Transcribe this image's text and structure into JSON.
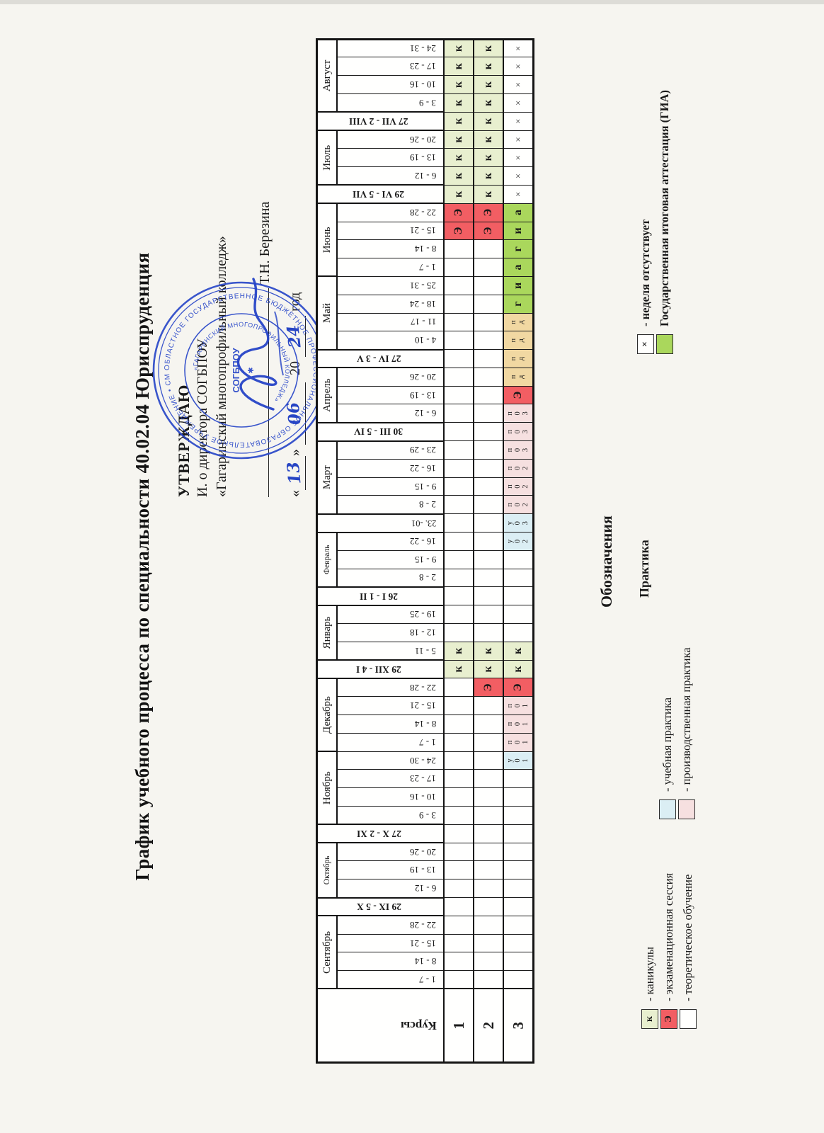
{
  "title": "График учебного процесса по специальности 40.02.04 Юриспруденция",
  "approval": {
    "line1": "УТВЕРЖДАЮ",
    "line2": "И. о директора СОГБПОУ",
    "line3": "«Гагаринский многопрофильный колледж»",
    "sign_name": "Т.Н. Березина",
    "quote_open": "«",
    "quote_close": "»",
    "date_day": "13",
    "date_month": "06",
    "year_prefix": "20",
    "date_year": "24",
    "year_word": "год"
  },
  "stamp": {
    "outer_text": "ОБЛАСТНОЕ ГОСУДАРСТВЕННОЕ БЮДЖЕТНОЕ ПРОФЕССИОНАЛЬНОЕ ОБРАЗОВАТЕЛЬНОЕ УЧРЕЖДЕНИЕ • СМОЛЕНСКОЙ ОБЛАСТИ •",
    "inner_text": "«ГАГАРИНСКИЙ МНОГОПРОФИЛЬНЫЙ КОЛЛЕДЖ»",
    "center_text": "СОГБПОУ"
  },
  "schedule": {
    "courses_header": "Курсы",
    "segments": [
      {
        "month": "Сентябрь",
        "weeks": [
          "1 - 7",
          "8 - 14",
          "15 - 21",
          "22 - 28"
        ]
      },
      {
        "cross": "29 IX - 5 X"
      },
      {
        "month": "Октябрь",
        "small": true,
        "weeks": [
          "6 - 12",
          "13 - 19",
          "20 - 26"
        ]
      },
      {
        "cross": "27 X - 2 XI"
      },
      {
        "month": "Ноябрь",
        "weeks": [
          "3 - 9",
          "10 - 16",
          "17 - 23",
          "24 - 30"
        ]
      },
      {
        "month": "Декабрь",
        "weeks": [
          "1 - 7",
          "8 - 14",
          "15 - 21",
          "22 - 28"
        ]
      },
      {
        "cross": "29 XII - 4 I"
      },
      {
        "month": "Январь",
        "weeks": [
          "5 - 11",
          "12 - 18",
          "19 - 25"
        ]
      },
      {
        "cross": "26 I - 1 II"
      },
      {
        "month": "Февраль",
        "small": true,
        "weeks": [
          "2 - 8",
          "9 - 15",
          "16 - 22"
        ]
      },
      {
        "cross": "23. -01",
        "plain": true
      },
      {
        "month": "Март",
        "weeks": [
          "2 - 8",
          "9 - 15",
          "16 - 22",
          "23 - 29"
        ]
      },
      {
        "cross": "30 III - 5 IV"
      },
      {
        "month": "Апрель",
        "weeks": [
          "6 - 12",
          "13 - 19",
          "20 - 26"
        ]
      },
      {
        "cross": "27 IV - 3 V"
      },
      {
        "month": "Май",
        "weeks": [
          "4 - 10",
          "11 - 17",
          "18 - 24",
          "25 - 31"
        ]
      },
      {
        "month": "Июнь",
        "weeks": [
          "1 - 7",
          "8 - 14",
          "15 - 21",
          "22 - 28"
        ]
      },
      {
        "cross": "29 VI - 5 VII"
      },
      {
        "month": "Июль",
        "weeks": [
          "6 - 12",
          "13 - 19",
          "20 - 26"
        ]
      },
      {
        "cross": "27 VII - 2 VIII"
      },
      {
        "month": "Август",
        "weeks": [
          "3 - 9",
          "10 - 16",
          "17 - 23",
          "24 - 31"
        ]
      }
    ],
    "cell_types": {
      "blank": {
        "text": "",
        "bg": "#fffffe",
        "cls": ""
      },
      "k": {
        "text": "к",
        "bg": "#e8efcf",
        "cls": ""
      },
      "E": {
        "text": "Э",
        "bg": "#f25e63",
        "cls": ""
      },
      "g": {
        "text": "г",
        "bg": "#aad75c",
        "cls": ""
      },
      "i": {
        "text": "и",
        "bg": "#aad75c",
        "cls": ""
      },
      "a": {
        "text": "а",
        "bg": "#aad75c",
        "cls": ""
      },
      "x": {
        "text": "×",
        "bg": "#fffffe",
        "cls": "xmark"
      },
      "u1": {
        "text": "у01",
        "bg": "#dbeef4",
        "cls": "stack"
      },
      "u2": {
        "text": "у02",
        "bg": "#dbeef4",
        "cls": "stack"
      },
      "u3": {
        "text": "у03",
        "bg": "#dbeef4",
        "cls": "stack"
      },
      "p1": {
        "text": "п01",
        "bg": "#f6e0e0",
        "cls": "stack"
      },
      "p2": {
        "text": "п02",
        "bg": "#f6e0e0",
        "cls": "stack"
      },
      "p3": {
        "text": "п03",
        "bg": "#f6e0e0",
        "cls": "stack"
      },
      "pd": {
        "text": "пд",
        "bg": "#f1d8a2",
        "cls": "stack"
      }
    },
    "rows": [
      {
        "course": "1",
        "cells": [
          "",
          "",
          "",
          "",
          "",
          "",
          "",
          "",
          "",
          "",
          "",
          "",
          "",
          "",
          "",
          "",
          "",
          "k",
          "k",
          "",
          "",
          "",
          "",
          "",
          "",
          "",
          "",
          "",
          "",
          "",
          "",
          "",
          "",
          "",
          "",
          "",
          "",
          "",
          "",
          "",
          "",
          "E",
          "E",
          "k",
          "k",
          "k",
          "k",
          "k",
          "k",
          "k",
          "k",
          "k"
        ]
      },
      {
        "course": "2",
        "cells": [
          "",
          "",
          "",
          "",
          "",
          "",
          "",
          "",
          "",
          "",
          "",
          "",
          "",
          "",
          "",
          "",
          "E",
          "k",
          "k",
          "",
          "",
          "",
          "",
          "",
          "",
          "",
          "",
          "",
          "",
          "",
          "",
          "",
          "",
          "",
          "",
          "",
          "",
          "",
          "",
          "",
          "",
          "E",
          "E",
          "k",
          "k",
          "k",
          "k",
          "k",
          "k",
          "k",
          "k",
          "k"
        ]
      },
      {
        "course": "3",
        "cells": [
          "",
          "",
          "",
          "",
          "",
          "",
          "",
          "",
          "",
          "",
          "",
          "",
          "u1",
          "p1",
          "p1",
          "p1",
          "E",
          "k",
          "k",
          "",
          "",
          "",
          "",
          "",
          "u2",
          "u3",
          "p2",
          "p2",
          "p2",
          "p3",
          "p3",
          "p3",
          "E",
          "pd",
          "pd",
          "pd",
          "pd",
          "g",
          "i",
          "a",
          "g",
          "i",
          "a",
          "x",
          "x",
          "x",
          "x",
          "x",
          "x",
          "x",
          "x",
          "x"
        ]
      }
    ]
  },
  "legend": {
    "heading": "Обозначения",
    "practice_heading": "Практика",
    "col1": [
      {
        "swatch": "к",
        "bg": "#e8efcf",
        "label": "- каникулы",
        "bold": false
      },
      {
        "swatch": "Э",
        "bg": "#f25e63",
        "label": "- экзаменационная сессия",
        "bold": false
      },
      {
        "swatch": "",
        "bg": "#fffffe",
        "label": "- теоретическое обучение",
        "bold": false
      }
    ],
    "col2": [
      {
        "swatch": "",
        "bg": "#dbeef4",
        "label": "- учебная практика",
        "bold": false
      },
      {
        "swatch": "",
        "bg": "#f6e0e0",
        "label": "- производственная практика",
        "bold": false
      }
    ],
    "col3": [
      {
        "swatch": "×",
        "bg": "#fffffe",
        "label": "- неделя отсутствует",
        "bold": true
      },
      {
        "swatch": "",
        "bg": "#aad75c",
        "label": "Государственная итоговая аттестация (ГИА)",
        "bold": true
      }
    ]
  }
}
